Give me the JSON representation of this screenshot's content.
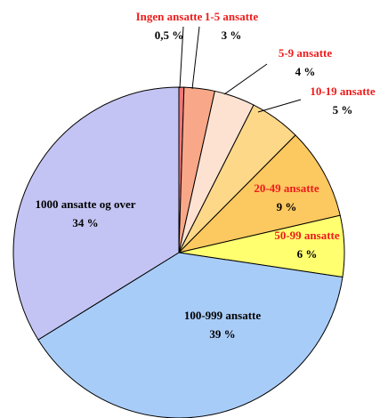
{
  "chart_data": {
    "type": "pie",
    "categories": [
      "Ingen ansatte",
      "1-5 ansatte",
      "5-9 ansatte",
      "10-19 ansatte",
      "20-49 ansatte",
      "50-99 ansatte",
      "100-999 ansatte",
      "1000 ansatte og over"
    ],
    "values": [
      0.5,
      3,
      4,
      5,
      9,
      6,
      39,
      34
    ],
    "value_labels": [
      "0,5 %",
      "3 %",
      "4 %",
      "5 %",
      "9 %",
      "6 %",
      "39 %",
      "34 %"
    ],
    "colors": [
      "#f07878",
      "#f8a888",
      "#fde2d2",
      "#fdd888",
      "#fcc860",
      "#ffff70",
      "#a8ccf8",
      "#c4c4f4"
    ]
  }
}
